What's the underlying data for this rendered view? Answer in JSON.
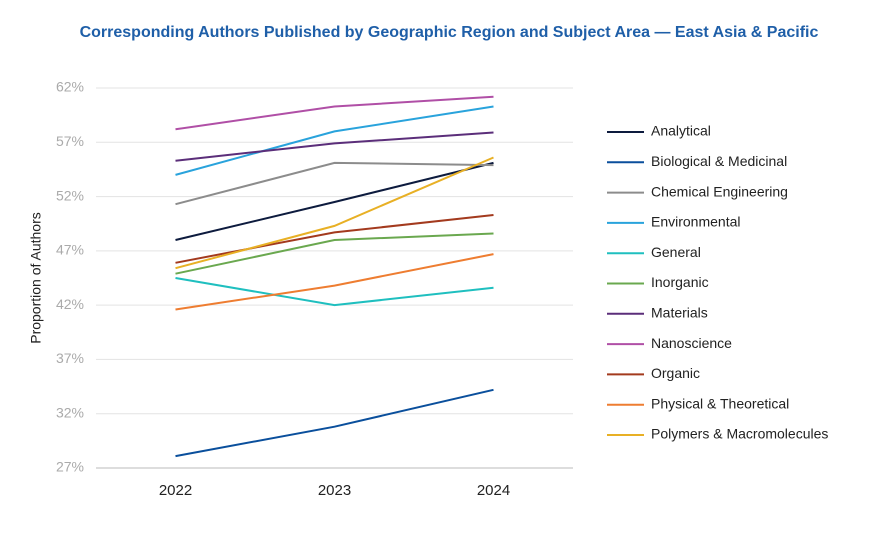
{
  "chart_data": {
    "type": "line",
    "title": "Corresponding Authors Published by Geographic Region and Subject Area — East Asia & Pacific",
    "y_label": "Proportion of Authors",
    "categories": [
      "2022",
      "2023",
      "2024"
    ],
    "ylim": [
      27,
      62
    ],
    "yticks": [
      {
        "value": 27,
        "label": "27%"
      },
      {
        "value": 32,
        "label": "32%"
      },
      {
        "value": 37,
        "label": "37%"
      },
      {
        "value": 42,
        "label": "42%"
      },
      {
        "value": 47,
        "label": "47%"
      },
      {
        "value": 52,
        "label": "52%"
      },
      {
        "value": 57,
        "label": "57%"
      },
      {
        "value": 62,
        "label": "62%"
      }
    ],
    "grid": true,
    "legend": "right",
    "series": [
      {
        "name": "Analytical",
        "color": "#0d1b3e",
        "values": [
          48.0,
          51.5,
          55.1
        ]
      },
      {
        "name": "Biological & Medicinal",
        "color": "#0a4f9c",
        "values": [
          28.1,
          30.8,
          34.2
        ]
      },
      {
        "name": "Chemical Engineering",
        "color": "#8c8c8c",
        "values": [
          51.3,
          55.1,
          54.9
        ]
      },
      {
        "name": "Environmental",
        "color": "#29a3dc",
        "values": [
          54.0,
          58.0,
          60.3
        ]
      },
      {
        "name": "General",
        "color": "#1fbfbf",
        "values": [
          44.5,
          42.0,
          43.6
        ]
      },
      {
        "name": "Inorganic",
        "color": "#6aa84f",
        "values": [
          44.9,
          48.0,
          48.6
        ]
      },
      {
        "name": "Materials",
        "color": "#5b2e7a",
        "values": [
          55.3,
          56.9,
          57.9
        ]
      },
      {
        "name": "Nanoscience",
        "color": "#b04fa6",
        "values": [
          58.2,
          60.3,
          61.2
        ]
      },
      {
        "name": "Organic",
        "color": "#a33a1e",
        "values": [
          45.9,
          48.7,
          50.3
        ]
      },
      {
        "name": "Physical & Theoretical",
        "color": "#ee7d31",
        "values": [
          41.6,
          43.8,
          46.7
        ]
      },
      {
        "name": "Polymers & Macromolecules",
        "color": "#e8b025",
        "values": [
          45.4,
          49.3,
          55.6
        ]
      }
    ]
  }
}
